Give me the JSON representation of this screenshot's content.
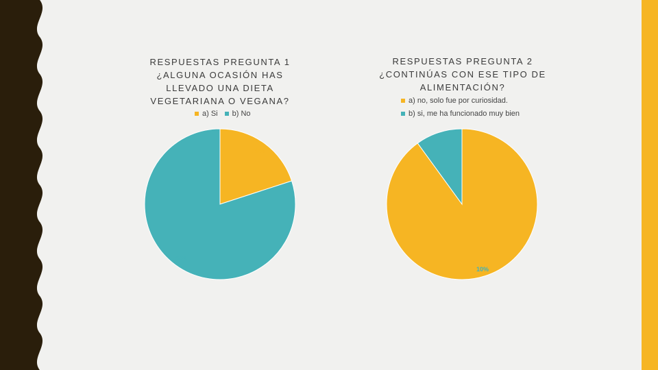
{
  "colors": {
    "accent": "#f6b523",
    "teal": "#45b2b8",
    "dark": "#2a1e0b",
    "background": "#f1f1ef"
  },
  "chart_data": [
    {
      "type": "pie",
      "title_lines": [
        "RESPUESTAS PREGUNTA 1",
        "¿ALGUNA OCASIÓN HAS",
        "LLEVADO UNA DIETA",
        "VEGETARIANA O VEGANA?"
      ],
      "legend_position": "top",
      "slices": [
        {
          "name": "a) Si",
          "value": 20,
          "label": "20%",
          "color": "#f6b523"
        },
        {
          "name": "b) No",
          "value": 80,
          "label": "80%",
          "color": "#45b2b8"
        }
      ]
    },
    {
      "type": "pie",
      "title_lines": [
        "RESPUESTAS PREGUNTA 2",
        "¿CONTINÚAS CON ESE TIPO DE",
        "ALIMENTACIÓN?"
      ],
      "legend_position": "top",
      "slices": [
        {
          "name": "a) no, solo fue por curiosidad.",
          "value": 90,
          "label": "90%",
          "color": "#f6b523"
        },
        {
          "name": "b) si, me ha funcionado muy bien",
          "value": 10,
          "label": "10%",
          "color": "#45b2b8"
        }
      ]
    }
  ]
}
